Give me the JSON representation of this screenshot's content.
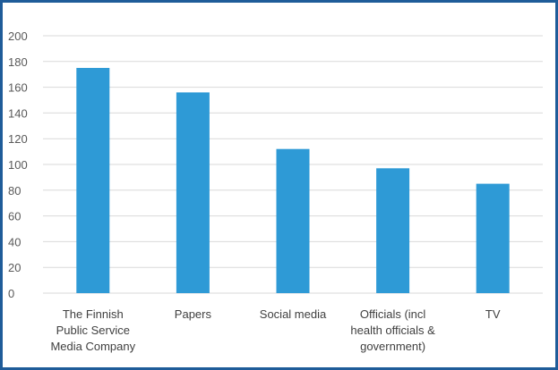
{
  "chart_data": {
    "type": "bar",
    "title": "",
    "xlabel": "",
    "ylabel": "",
    "categories": [
      [
        "The Finnish",
        "Public Service",
        "Media Company"
      ],
      [
        "Papers"
      ],
      [
        "Social media"
      ],
      [
        "Officials (incl",
        "health officials &",
        "government)"
      ],
      [
        "TV"
      ]
    ],
    "values": [
      175,
      156,
      112,
      97,
      85
    ],
    "ylim": [
      0,
      200
    ],
    "yticks": [
      0,
      20,
      40,
      60,
      80,
      100,
      120,
      140,
      160,
      180,
      200
    ],
    "grid": true,
    "legend": "none",
    "bar_color": "#2e9ad6"
  }
}
